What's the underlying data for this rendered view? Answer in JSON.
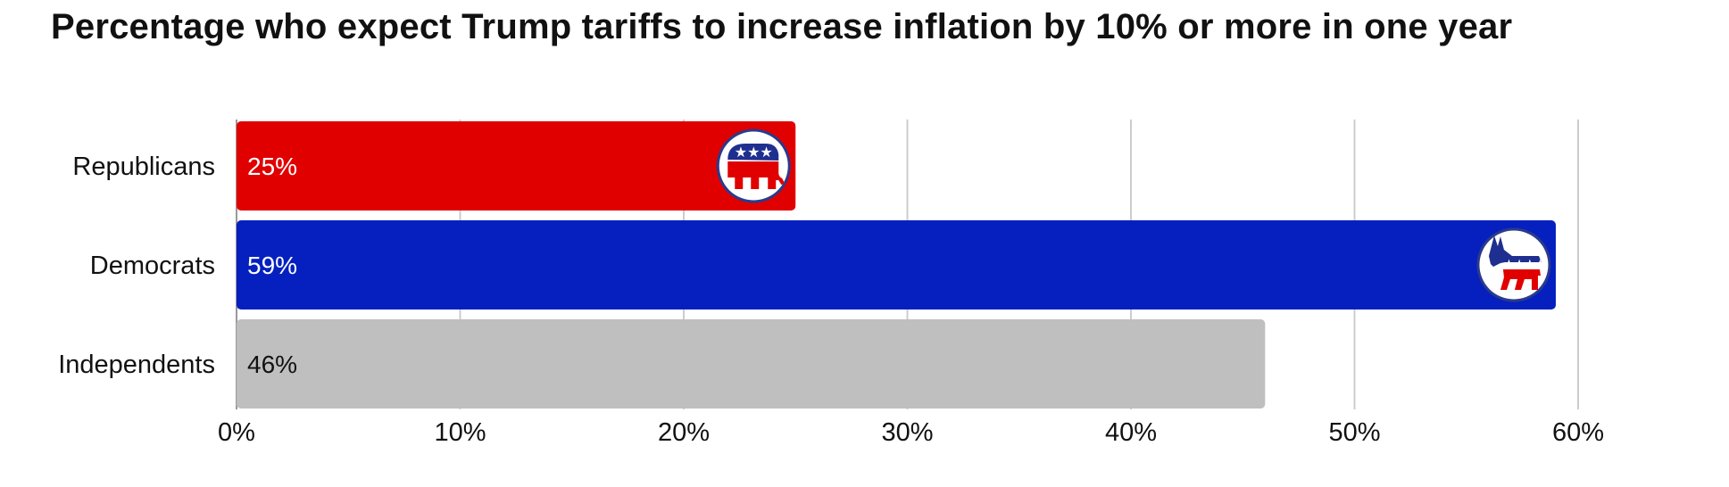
{
  "chart_data": {
    "type": "bar",
    "orientation": "horizontal",
    "title": "Percentage who expect Trump tariffs to increase inflation by 10% or more in one year",
    "categories": [
      "Republicans",
      "Democrats",
      "Independents"
    ],
    "values": [
      25,
      59,
      46
    ],
    "data_labels": [
      "25%",
      "59%",
      "46%"
    ],
    "colors": [
      "#e00000",
      "#0520bf",
      "#bfbfbf"
    ],
    "label_colors": [
      "#ffffff",
      "#ffffff",
      "#111111"
    ],
    "icons": [
      "republican-elephant-icon",
      "democrat-donkey-icon",
      ""
    ],
    "xlim": [
      0,
      60
    ],
    "xticks": [
      0,
      10,
      20,
      30,
      40,
      50,
      60
    ],
    "xtick_labels": [
      "0%",
      "10%",
      "20%",
      "30%",
      "40%",
      "50%",
      "60%"
    ],
    "grid": "vertical",
    "legend": "none"
  }
}
